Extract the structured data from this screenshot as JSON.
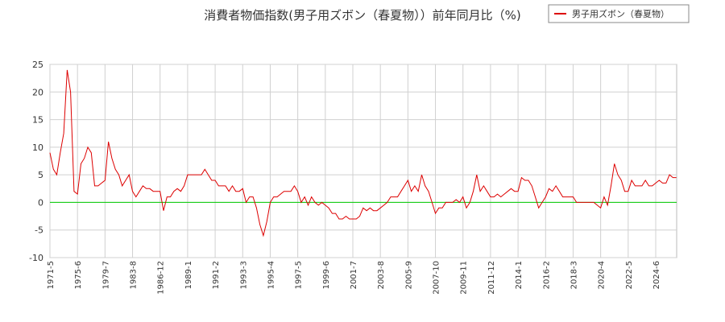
{
  "chart_data": {
    "type": "line",
    "title": "消費者物価指数(男子用ズボン（春夏物））前年同月比（%)",
    "categories": [
      "1971-5",
      null,
      null,
      null,
      null,
      null,
      null,
      null,
      "1975-6",
      null,
      null,
      null,
      null,
      null,
      null,
      null,
      "1979-7",
      null,
      null,
      null,
      null,
      null,
      null,
      null,
      "1983-8",
      null,
      null,
      null,
      null,
      null,
      null,
      null,
      "1986-12",
      null,
      null,
      null,
      null,
      null,
      null,
      null,
      "1989-1",
      null,
      null,
      null,
      null,
      null,
      null,
      null,
      "1991-2",
      null,
      null,
      null,
      null,
      null,
      null,
      null,
      "1993-3",
      null,
      null,
      null,
      null,
      null,
      null,
      null,
      "1995-4",
      null,
      null,
      null,
      null,
      null,
      null,
      null,
      "1997-5",
      null,
      null,
      null,
      null,
      null,
      null,
      null,
      "1999-6",
      null,
      null,
      null,
      null,
      null,
      null,
      null,
      "2001-7",
      null,
      null,
      null,
      null,
      null,
      null,
      null,
      "2003-8",
      null,
      null,
      null,
      null,
      null,
      null,
      null,
      "2005-9",
      null,
      null,
      null,
      null,
      null,
      null,
      null,
      "2007-10",
      null,
      null,
      null,
      null,
      null,
      null,
      null,
      "2009-11",
      null,
      null,
      null,
      null,
      null,
      null,
      null,
      "2011-12",
      null,
      null,
      null,
      null,
      null,
      null,
      null,
      "2014-1",
      null,
      null,
      null,
      null,
      null,
      null,
      null,
      "2016-2",
      null,
      null,
      null,
      null,
      null,
      null,
      null,
      "2018-3",
      null,
      null,
      null,
      null,
      null,
      null,
      null,
      "2020-4",
      null,
      null,
      null,
      null,
      null,
      null,
      null,
      "2022-5",
      null,
      null,
      null,
      null,
      null,
      null,
      null,
      "2024-6",
      null,
      null,
      null,
      null,
      null,
      null
    ],
    "series": [
      {
        "name": "男子用ズボン（春夏物）",
        "color": "#dd0000",
        "values": [
          9,
          6,
          5,
          9,
          12.5,
          24,
          20,
          2,
          1.5,
          7,
          8,
          10,
          9,
          3,
          3,
          3.5,
          4,
          11,
          8,
          6,
          5,
          3,
          4,
          5,
          2,
          1,
          2,
          3,
          2.5,
          2.5,
          2,
          2,
          2,
          -1.5,
          1,
          1,
          2,
          2.5,
          2,
          3,
          5,
          5,
          5,
          5,
          5,
          6,
          5,
          4,
          4,
          3,
          3,
          3,
          2,
          3,
          2,
          2,
          2.5,
          0,
          1,
          1,
          -1,
          -4,
          -6,
          -3.5,
          0,
          1,
          1,
          1.5,
          2,
          2,
          2,
          3,
          2,
          0,
          1,
          -0.5,
          1,
          0,
          -0.5,
          0,
          -0.5,
          -1,
          -2,
          -2,
          -3,
          -3,
          -2.5,
          -3,
          -3,
          -3,
          -2.5,
          -1,
          -1.5,
          -1,
          -1.5,
          -1.5,
          -1,
          -0.5,
          0,
          1,
          1,
          1,
          2,
          3,
          4,
          2,
          3,
          2,
          5,
          3,
          2,
          0,
          -2,
          -1,
          -1,
          0,
          0,
          0,
          0.5,
          0,
          1,
          -1,
          0,
          2,
          5,
          2,
          3,
          2,
          1,
          1,
          1.5,
          1,
          1.5,
          2,
          2.5,
          2,
          2,
          4.5,
          4,
          4,
          3,
          1,
          -1,
          0,
          1,
          2.5,
          2,
          3,
          2,
          1,
          1,
          1,
          1,
          0,
          0,
          0,
          0,
          0,
          0,
          -0.5,
          -1,
          1,
          -0.5,
          3,
          7,
          5,
          4,
          2,
          2,
          4,
          3,
          3,
          3,
          4,
          3,
          3,
          3.5,
          4,
          3.5,
          3.5,
          5,
          4.5,
          4.5
        ]
      }
    ],
    "ylim": [
      -10,
      25
    ],
    "yticks": [
      -10,
      -5,
      0,
      5,
      10,
      15,
      20,
      25
    ],
    "grid": true,
    "zero_line_color": "#00cc00",
    "legend": "top-right"
  }
}
